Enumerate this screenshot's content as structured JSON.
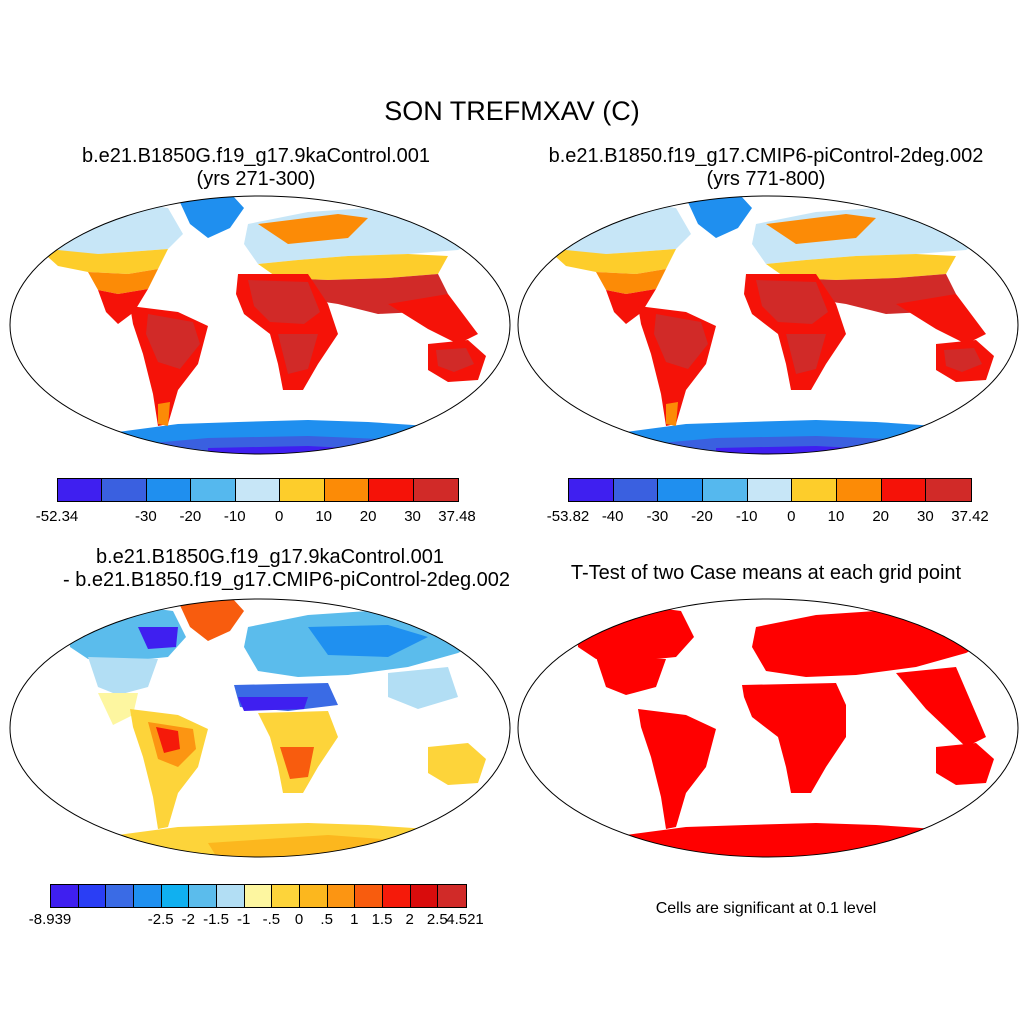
{
  "figure": {
    "main_title": "SON TREFMXAV (C)",
    "panels": [
      {
        "id": "case1",
        "title_line1": "b.e21.B1850G.f19_g17.9kaControl.001",
        "title_line2": "(yrs 271-300)",
        "colorbar": {
          "colors": [
            "#3f1ff0",
            "#3a60e0",
            "#1f8fef",
            "#55b8ee",
            "#c7e6f7",
            "#fdcd2b",
            "#fc8b06",
            "#f51208",
            "#d12a28"
          ],
          "labels": [
            "-52.34",
            "-30",
            "-20",
            "-10",
            "0",
            "10",
            "20",
            "30",
            "37.48"
          ]
        }
      },
      {
        "id": "case2",
        "title_line1": "b.e21.B1850.f19_g17.CMIP6-piControl-2deg.002",
        "title_line2": "(yrs 771-800)",
        "colorbar": {
          "colors": [
            "#3f1ff0",
            "#3a60e0",
            "#1f8fef",
            "#55b8ee",
            "#c7e6f7",
            "#fdcd2b",
            "#fc8b06",
            "#f51208",
            "#d12a28"
          ],
          "labels": [
            "-53.82",
            "-40",
            "-30",
            "-20",
            "-10",
            "0",
            "10",
            "20",
            "30",
            "37.42"
          ]
        }
      },
      {
        "id": "diff",
        "title_line1": "b.e21.B1850G.f19_g17.9kaControl.001",
        "title_line2": "- b.e21.B1850.f19_g17.CMIP6-piControl-2deg.002",
        "colorbar": {
          "colors": [
            "#3f1ff0",
            "#2a3ef5",
            "#3a6be5",
            "#1f90f0",
            "#10b0f0",
            "#5bbcec",
            "#b2def4",
            "#fdf6a0",
            "#fdd43a",
            "#fcb71e",
            "#fc9512",
            "#f85c0e",
            "#f51a0a",
            "#d90c0c",
            "#d12a28"
          ],
          "labels": [
            "-8.939",
            "-2.5",
            "-2",
            "-1.5",
            "-1",
            "-.5",
            "0",
            ".5",
            "1",
            "1.5",
            "2",
            "2.5",
            "4.521"
          ]
        }
      },
      {
        "id": "ttest",
        "title_line1": "T-Test of two Case means at each grid point",
        "note": "Cells are significant at 0.1 level"
      }
    ]
  }
}
